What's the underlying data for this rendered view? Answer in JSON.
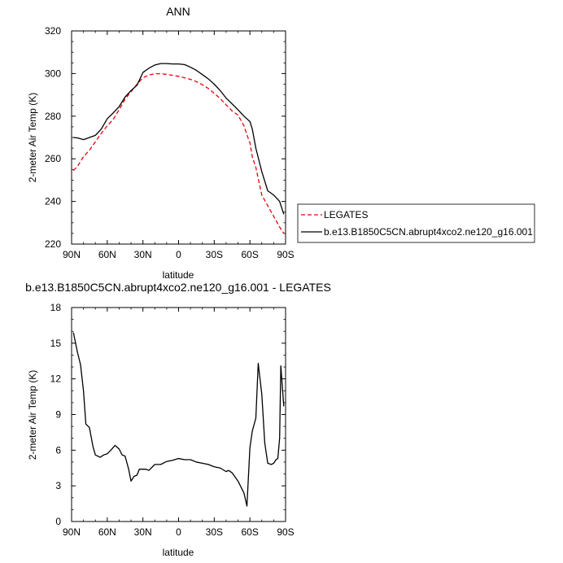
{
  "chart_data": [
    {
      "type": "line",
      "title": "ANN",
      "xlabel": "latitude",
      "ylabel": "2-meter Air Temp (K)",
      "xlim": [
        90,
        -90
      ],
      "ylim": [
        220,
        320
      ],
      "xticks": [
        90,
        60,
        30,
        0,
        -30,
        -60,
        -90
      ],
      "xtick_labels": [
        "90N",
        "60N",
        "30N",
        "0",
        "30S",
        "60S",
        "90S"
      ],
      "yticks": [
        220,
        240,
        260,
        280,
        300,
        320
      ],
      "ytick_labels": [
        "220",
        "240",
        "260",
        "280",
        "300",
        "320"
      ],
      "grid": false,
      "legend": "right",
      "series": [
        {
          "name": "LEGATES",
          "color": "#e8000b",
          "dash": "dashed",
          "x": [
            88.5,
            85,
            80,
            75,
            70,
            65,
            60,
            55,
            50,
            45,
            40,
            35,
            30,
            25,
            20,
            15,
            10,
            5,
            0,
            -5,
            -10,
            -15,
            -20,
            -25,
            -30,
            -35,
            -40,
            -45,
            -50,
            -55,
            -58,
            -60,
            -62,
            -65,
            -70,
            -75,
            -80,
            -85,
            -88.5
          ],
          "y": [
            254.5,
            256.5,
            261,
            264,
            268,
            272,
            275.5,
            278.5,
            283,
            288,
            291.5,
            295,
            298,
            299.3,
            299.9,
            299.9,
            299.6,
            299.2,
            298.7,
            298,
            297.3,
            296.2,
            294.8,
            293,
            290.7,
            288.3,
            285.3,
            282.5,
            280.5,
            275.5,
            270.5,
            267.5,
            261,
            256,
            243,
            238,
            233,
            228,
            225
          ]
        },
        {
          "name": "b.e13.B1850C5CN.abrupt4xco2.ne120_g16.001",
          "color": "#000000",
          "dash": "solid",
          "x": [
            88.5,
            85,
            80,
            75,
            70,
            65,
            60,
            55,
            50,
            45,
            40,
            35,
            30,
            25,
            20,
            15,
            10,
            5,
            0,
            -5,
            -10,
            -15,
            -20,
            -25,
            -30,
            -35,
            -40,
            -45,
            -50,
            -55,
            -60,
            -62,
            -65,
            -70,
            -75,
            -80,
            -85,
            -88.5
          ],
          "y": [
            270,
            269.8,
            269,
            270,
            271,
            274,
            278.8,
            281.5,
            284.5,
            289,
            292,
            294.5,
            300.5,
            302.5,
            304,
            304.7,
            304.7,
            304.5,
            304.5,
            304.2,
            303,
            301.5,
            299.5,
            297.5,
            295,
            292,
            288.5,
            285.8,
            283,
            280,
            277.5,
            274,
            265,
            254,
            245,
            243,
            240,
            234
          ]
        }
      ]
    },
    {
      "type": "line",
      "title": "b.e13.B1850C5CN.abrupt4xco2.ne120_g16.001 - LEGATES",
      "xlabel": "latitude",
      "ylabel": "2-meter Air Temp (K)",
      "xlim": [
        90,
        -90
      ],
      "ylim": [
        0,
        18
      ],
      "xticks": [
        90,
        60,
        30,
        0,
        -30,
        -60,
        -90
      ],
      "xtick_labels": [
        "90N",
        "60N",
        "30N",
        "0",
        "30S",
        "60S",
        "90S"
      ],
      "yticks": [
        0,
        3,
        6,
        9,
        12,
        15,
        18
      ],
      "ytick_labels": [
        "0",
        "3",
        "6",
        "9",
        "12",
        "15",
        "18"
      ],
      "grid": false,
      "series": [
        {
          "color": "#000000",
          "dash": "solid",
          "x": [
            88.5,
            85,
            82.5,
            80,
            78,
            75,
            72,
            70,
            66,
            63,
            60,
            57,
            53.5,
            50,
            47.5,
            45,
            42,
            40,
            37.5,
            35,
            33,
            30,
            27.5,
            25,
            20,
            15,
            10,
            5,
            0,
            -5,
            -10,
            -15,
            -20,
            -25,
            -30,
            -35,
            -40,
            -42,
            -45,
            -50,
            -55,
            -57.5,
            -60,
            -62,
            -65,
            -67,
            -70,
            -72.5,
            -75,
            -78,
            -80,
            -82,
            -83.5,
            -85,
            -86,
            -88.5
          ],
          "y": [
            15.9,
            14.2,
            13.2,
            11,
            8.2,
            7.9,
            6.3,
            5.6,
            5.4,
            5.6,
            5.7,
            6,
            6.4,
            6.1,
            5.6,
            5.5,
            4.4,
            3.4,
            3.8,
            3.9,
            4.4,
            4.4,
            4.4,
            4.3,
            4.8,
            4.8,
            5.05,
            5.15,
            5.3,
            5.2,
            5.2,
            5,
            4.9,
            4.8,
            4.6,
            4.5,
            4.2,
            4.3,
            4.1,
            3.4,
            2.4,
            1.3,
            6.2,
            7.6,
            8.7,
            13.3,
            10.7,
            6.6,
            4.9,
            4.8,
            4.9,
            5.2,
            5.3,
            7,
            13.1,
            9.7
          ]
        }
      ]
    }
  ]
}
